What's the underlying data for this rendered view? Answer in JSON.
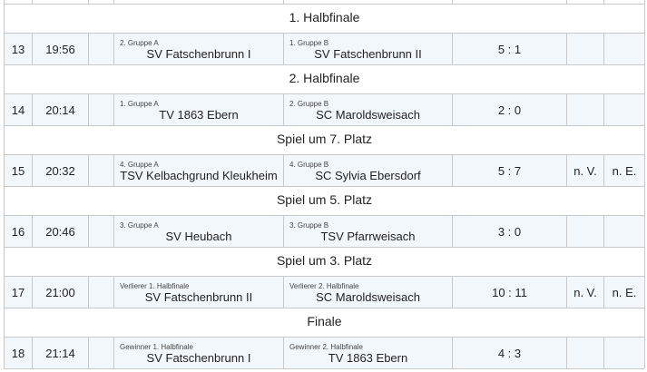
{
  "matches": [
    {
      "section": "1. Halbfinale",
      "nr": "13",
      "time": "19:56",
      "home_label": "2. Gruppe A",
      "home": "SV Fatschenbrunn I",
      "away_label": "1. Gruppe B",
      "away": "SV Fatschenbrunn II",
      "score": "5 : 1",
      "nv": "",
      "ne": ""
    },
    {
      "section": "2. Halbfinale",
      "nr": "14",
      "time": "20:14",
      "home_label": "1. Gruppe A",
      "home": "TV 1863 Ebern",
      "away_label": "2. Gruppe B",
      "away": "SC Maroldsweisach",
      "score": "2 : 0",
      "nv": "",
      "ne": ""
    },
    {
      "section": "Spiel um 7. Platz",
      "nr": "15",
      "time": "20:32",
      "home_label": "4. Gruppe A",
      "home": "TSV Kelbachgrund Kleukheim",
      "away_label": "4. Gruppe B",
      "away": "SC Sylvia Ebersdorf",
      "score": "5 : 7",
      "nv": "n. V.",
      "ne": "n. E."
    },
    {
      "section": "Spiel um 5. Platz",
      "nr": "16",
      "time": "20:46",
      "home_label": "3. Gruppe A",
      "home": "SV Heubach",
      "away_label": "3. Gruppe B",
      "away": "TSV Pfarrweisach",
      "score": "3 : 0",
      "nv": "",
      "ne": ""
    },
    {
      "section": "Spiel um 3. Platz",
      "nr": "17",
      "time": "21:00",
      "home_label": "Verlierer 1. Halbfinale",
      "home": "SV Fatschenbrunn II",
      "away_label": "Verlierer 2. Halbfinale",
      "away": "SC Maroldsweisach",
      "score": "10 : 11",
      "nv": "n. V.",
      "ne": "n. E."
    },
    {
      "section": "Finale",
      "nr": "18",
      "time": "21:14",
      "home_label": "Gewinner 1. Halbfinale",
      "home": "SV Fatschenbrunn I",
      "away_label": "Gewinner 2. Halbfinale",
      "away": "TV 1863 Ebern",
      "score": "4 : 3",
      "nv": "",
      "ne": ""
    }
  ]
}
